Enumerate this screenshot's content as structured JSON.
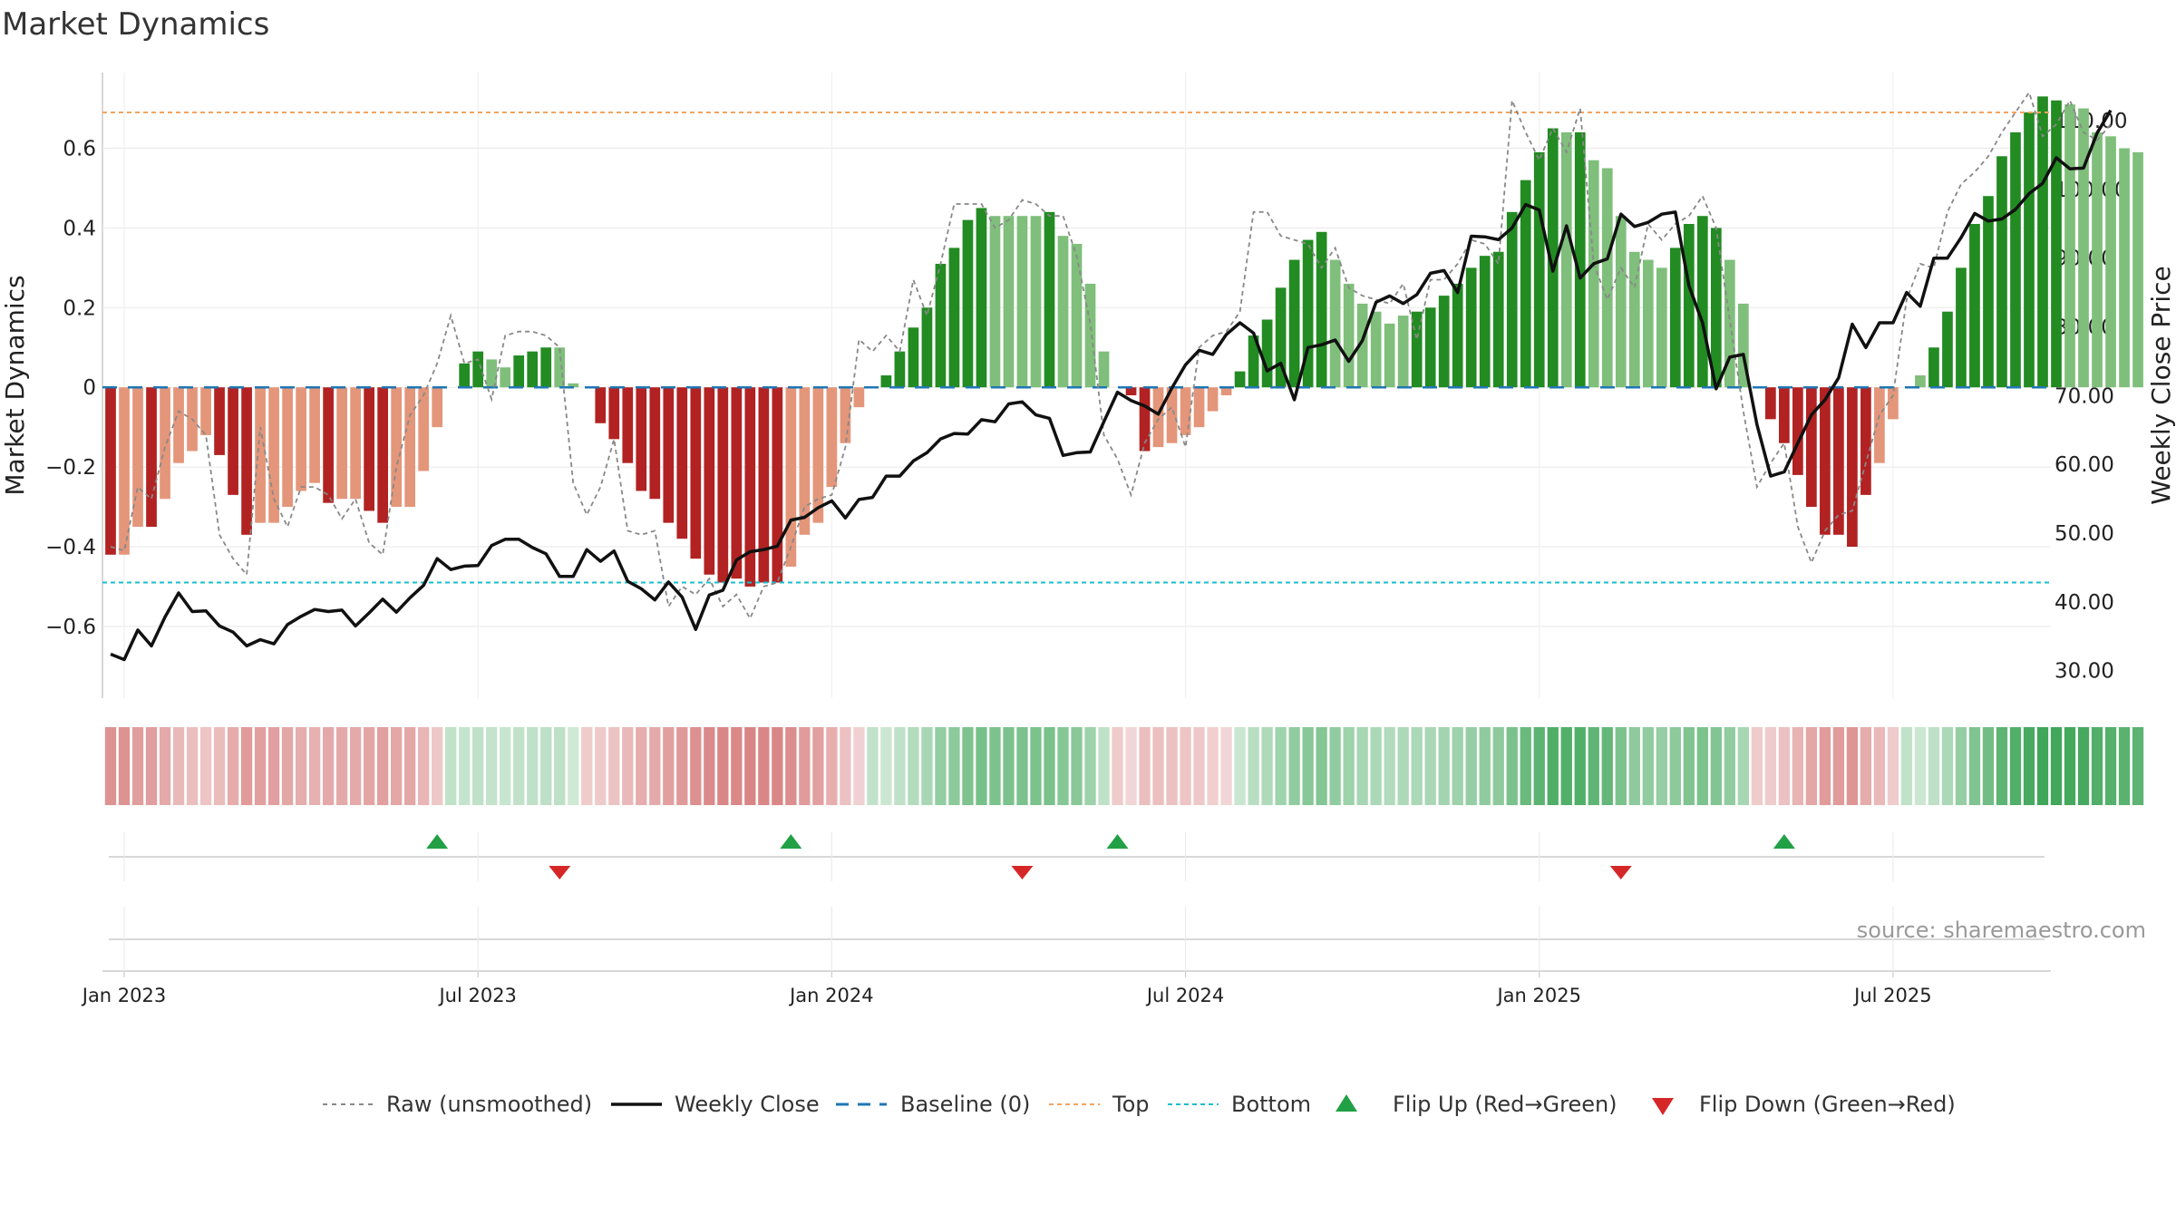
{
  "title": "Market Dynamics",
  "source": "source: sharemaestro.com",
  "chart_data": {
    "type": "bar",
    "title": "Market Dynamics",
    "ylabel": "Market Dynamics",
    "y2label": "Weekly Close Price",
    "ylim": [
      -0.78,
      0.79
    ],
    "y2lim": [
      26.0,
      117.0
    ],
    "yticks": [
      -0.6,
      -0.4,
      -0.2,
      0,
      0.2,
      0.4,
      0.6
    ],
    "ytick_labels": [
      "−0.6",
      "−0.4",
      "−0.2",
      "0",
      "0.2",
      "0.4",
      "0.6"
    ],
    "y2ticks": [
      30,
      40,
      50,
      60,
      70,
      80,
      90,
      100,
      110
    ],
    "y2tick_labels": [
      "30.00",
      "40.00",
      "50.00",
      "60.00",
      "70.00",
      "80.00",
      "90.00",
      "100.00",
      "110.00"
    ],
    "xticks": [
      {
        "label": "Jan 2023",
        "week": 1
      },
      {
        "label": "Jul 2023",
        "week": 27
      },
      {
        "label": "Jan 2024",
        "week": 53
      },
      {
        "label": "Jul 2024",
        "week": 79
      },
      {
        "label": "Jan 2025",
        "week": 105
      },
      {
        "label": "Jul 2025",
        "week": 131
      }
    ],
    "x_week_range": [
      -0.6,
      142.6
    ],
    "grid": true,
    "legend_position": "bottom",
    "top_line": 0.69,
    "bottom_line": -0.49,
    "baseline": 0,
    "colors": {
      "strong_red": "#b22222",
      "light_red": "#e4967a",
      "strong_green": "#228b22",
      "light_green": "#7fbf7b",
      "raw": "#888888",
      "close": "#111111",
      "baseline": "#1f77b4",
      "top": "#f4a460",
      "bottom": "#17becf",
      "flip_up": "#22a045",
      "flip_down": "#d62728"
    },
    "bars": [
      -0.42,
      -0.42,
      -0.35,
      -0.35,
      -0.28,
      -0.19,
      -0.16,
      -0.12,
      -0.17,
      -0.27,
      -0.37,
      -0.34,
      -0.34,
      -0.3,
      -0.26,
      -0.24,
      -0.29,
      -0.28,
      -0.28,
      -0.31,
      -0.34,
      -0.3,
      -0.3,
      -0.21,
      -0.1,
      0.0,
      0.06,
      0.09,
      0.07,
      0.05,
      0.08,
      0.09,
      0.1,
      0.1,
      0.01,
      0.0,
      -0.09,
      -0.13,
      -0.19,
      -0.26,
      -0.28,
      -0.34,
      -0.38,
      -0.43,
      -0.47,
      -0.49,
      -0.48,
      -0.5,
      -0.49,
      -0.49,
      -0.45,
      -0.37,
      -0.34,
      -0.25,
      -0.14,
      -0.05,
      0.0,
      0.03,
      0.09,
      0.15,
      0.2,
      0.31,
      0.35,
      0.42,
      0.45,
      0.43,
      0.43,
      0.43,
      0.43,
      0.44,
      0.38,
      0.36,
      0.26,
      0.09,
      0.0,
      -0.02,
      -0.16,
      -0.15,
      -0.14,
      -0.12,
      -0.1,
      -0.06,
      -0.02,
      0.04,
      0.13,
      0.17,
      0.25,
      0.32,
      0.37,
      0.39,
      0.32,
      0.26,
      0.21,
      0.19,
      0.16,
      0.18,
      0.19,
      0.2,
      0.23,
      0.26,
      0.3,
      0.33,
      0.34,
      0.44,
      0.52,
      0.59,
      0.65,
      0.64,
      0.64,
      0.57,
      0.55,
      0.43,
      0.34,
      0.32,
      0.3,
      0.35,
      0.41,
      0.43,
      0.4,
      0.32,
      0.21,
      0.0,
      -0.08,
      -0.14,
      -0.22,
      -0.3,
      -0.37,
      -0.37,
      -0.4,
      -0.27,
      -0.19,
      -0.08,
      0.0,
      0.03,
      0.1,
      0.19,
      0.3,
      0.41,
      0.48,
      0.58,
      0.64,
      0.69,
      0.73,
      0.72,
      0.71,
      0.7,
      0.64,
      0.63,
      0.6,
      0.59
    ],
    "bar_strength": [
      1,
      0,
      0,
      1,
      0,
      0,
      0,
      0,
      1,
      1,
      1,
      0,
      0,
      0,
      0,
      0,
      1,
      0,
      0,
      1,
      1,
      0,
      0,
      0,
      0,
      0,
      1,
      1,
      0,
      0,
      1,
      1,
      1,
      0,
      0,
      0,
      1,
      1,
      1,
      1,
      1,
      1,
      1,
      1,
      1,
      1,
      1,
      1,
      1,
      1,
      0,
      0,
      0,
      0,
      0,
      0,
      0,
      1,
      1,
      1,
      1,
      1,
      1,
      1,
      1,
      0,
      0,
      0,
      0,
      1,
      0,
      0,
      0,
      0,
      0,
      1,
      1,
      0,
      0,
      0,
      0,
      0,
      0,
      1,
      1,
      1,
      1,
      1,
      1,
      1,
      0,
      0,
      0,
      0,
      0,
      0,
      1,
      1,
      1,
      1,
      1,
      1,
      1,
      1,
      1,
      1,
      1,
      0,
      1,
      0,
      0,
      0,
      0,
      0,
      0,
      1,
      1,
      1,
      1,
      0,
      0,
      0,
      1,
      1,
      1,
      1,
      1,
      1,
      1,
      1,
      0,
      0,
      0,
      0,
      1,
      1,
      1,
      1,
      1,
      1,
      1,
      1,
      1,
      1,
      0,
      0,
      0,
      0,
      0,
      0,
      0,
      0
    ],
    "raw": [
      -0.4,
      -0.41,
      -0.25,
      -0.28,
      -0.15,
      -0.06,
      -0.08,
      -0.12,
      -0.37,
      -0.43,
      -0.47,
      -0.1,
      -0.28,
      -0.35,
      -0.25,
      -0.25,
      -0.27,
      -0.33,
      -0.28,
      -0.39,
      -0.42,
      -0.2,
      -0.07,
      -0.02,
      0.06,
      0.18,
      0.06,
      0.07,
      -0.03,
      0.13,
      0.14,
      0.14,
      0.13,
      0.1,
      -0.24,
      -0.32,
      -0.25,
      -0.13,
      -0.36,
      -0.37,
      -0.36,
      -0.55,
      -0.5,
      -0.52,
      -0.48,
      -0.55,
      -0.52,
      -0.58,
      -0.5,
      -0.49,
      -0.4,
      -0.3,
      -0.28,
      -0.27,
      -0.15,
      0.12,
      0.09,
      0.13,
      0.09,
      0.27,
      0.18,
      0.31,
      0.46,
      0.46,
      0.46,
      0.4,
      0.42,
      0.47,
      0.46,
      0.43,
      0.43,
      0.33,
      0.16,
      -0.12,
      -0.18,
      -0.27,
      -0.14,
      -0.08,
      -0.05,
      -0.15,
      0.1,
      0.13,
      0.14,
      0.19,
      0.44,
      0.44,
      0.38,
      0.37,
      0.36,
      0.3,
      0.35,
      0.25,
      0.23,
      0.22,
      0.21,
      0.26,
      0.12,
      0.27,
      0.27,
      0.31,
      0.37,
      0.36,
      0.31,
      0.72,
      0.64,
      0.57,
      0.65,
      0.59,
      0.7,
      0.31,
      0.22,
      0.3,
      0.25,
      0.41,
      0.37,
      0.41,
      0.43,
      0.48,
      0.4,
      0.17,
      -0.06,
      -0.25,
      -0.19,
      -0.14,
      -0.35,
      -0.44,
      -0.36,
      -0.32,
      -0.31,
      -0.19,
      -0.07,
      -0.02,
      0.22,
      0.31,
      0.3,
      0.44,
      0.51,
      0.54,
      0.58,
      0.64,
      0.69,
      0.74,
      0.63,
      0.66,
      0.72,
      0.64,
      0.62,
      0.66
    ],
    "close": [
      32.4,
      31.6,
      35.9,
      33.6,
      37.8,
      41.3,
      38.6,
      38.7,
      36.5,
      35.6,
      33.6,
      34.5,
      33.9,
      36.7,
      37.9,
      38.9,
      38.6,
      38.8,
      36.5,
      38.4,
      40.4,
      38.5,
      40.6,
      42.4,
      46.3,
      44.7,
      45.2,
      45.3,
      48.2,
      49.1,
      49.1,
      47.9,
      47.0,
      43.7,
      43.7,
      47.6,
      45.9,
      47.4,
      43.0,
      41.9,
      40.3,
      42.9,
      40.7,
      36.0,
      41.0,
      41.7,
      46.1,
      47.3,
      47.6,
      48.1,
      51.9,
      52.3,
      53.7,
      54.7,
      52.2,
      54.9,
      55.2,
      58.3,
      58.3,
      60.5,
      61.7,
      63.7,
      64.5,
      64.4,
      66.5,
      66.2,
      68.8,
      69.1,
      67.2,
      66.7,
      61.3,
      61.7,
      61.8,
      66.2,
      70.5,
      69.3,
      68.5,
      67.3,
      71.1,
      74.5,
      76.6,
      76.0,
      78.9,
      80.6,
      79.1,
      73.6,
      74.7,
      69.4,
      77.0,
      77.4,
      78.1,
      75.0,
      78.0,
      83.6,
      84.5,
      83.4,
      84.7,
      87.8,
      88.2,
      85.0,
      93.2,
      93.1,
      92.7,
      94.4,
      97.8,
      97.0,
      88.1,
      94.7,
      87.1,
      89.2,
      89.9,
      96.4,
      94.6,
      95.2,
      96.4,
      96.7,
      86.0,
      80.6,
      71.0,
      75.6,
      76.0,
      65.8,
      58.3,
      58.9,
      63.1,
      67.2,
      69.4,
      72.6,
      80.4,
      77.0,
      80.6,
      80.6,
      85.0,
      83.0,
      90.0,
      90.0,
      93.0,
      96.5,
      95.4,
      95.7,
      97.1,
      99.4,
      100.9,
      104.6,
      103.0,
      103.1,
      108.2,
      111.5
    ],
    "flip_up_weeks": [
      24,
      50,
      74,
      123
    ],
    "flip_down_weeks": [
      33,
      67,
      111
    ],
    "legend": [
      "Raw (unsmoothed)",
      "Weekly Close",
      "Baseline (0)",
      "Top",
      "Bottom",
      "Flip Up (Red→Green)",
      "Flip Down (Green→Red)"
    ]
  }
}
